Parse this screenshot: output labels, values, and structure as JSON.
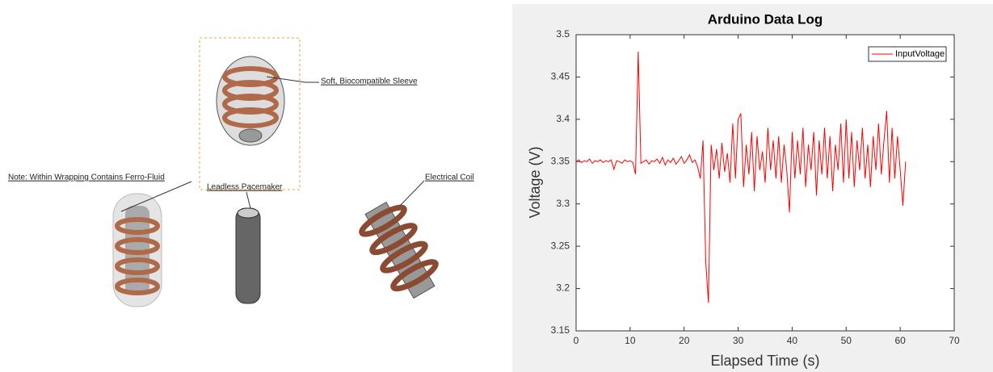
{
  "diagram": {
    "labels": [
      "Soft, Biocompatible Sleeve",
      "Note: Within Wrapping Contains Ferro-Fluid",
      "Leadless Pacemaker",
      "Electrical Coil"
    ]
  },
  "chart_data": {
    "type": "line",
    "title": "Arduino Data Log",
    "x_label": "Elapsed Time (s)",
    "y_label": "Voltage (V)",
    "xlim": [
      0,
      70
    ],
    "xticks": [
      0,
      10,
      20,
      30,
      40,
      50,
      60,
      70
    ],
    "ylim": [
      3.15,
      3.5
    ],
    "yticks": [
      3.15,
      3.2,
      3.25,
      3.3,
      3.35,
      3.4,
      3.45,
      3.5
    ],
    "grid": false,
    "legend": "upper right",
    "x": [
      0,
      0.5,
      1,
      1.5,
      2,
      2.5,
      3,
      3.5,
      4,
      4.5,
      5,
      5.5,
      6,
      6.5,
      7,
      7.5,
      8,
      8.5,
      9,
      9.5,
      10,
      10.5,
      11,
      11.5,
      12,
      12.5,
      13,
      13.5,
      14,
      14.5,
      15,
      15.5,
      16,
      16.5,
      17,
      17.5,
      18,
      18.5,
      19,
      19.5,
      20,
      20.5,
      21,
      21.5,
      22,
      22.5,
      23,
      23.5,
      24,
      24.5,
      25,
      25.5,
      26,
      26.5,
      27,
      27.5,
      28,
      28.5,
      29,
      29.5,
      30,
      30.5,
      31,
      31.5,
      32,
      32.5,
      33,
      33.5,
      34,
      34.5,
      35,
      35.5,
      36,
      36.5,
      37,
      37.5,
      38,
      38.5,
      39,
      39.5,
      40,
      40.5,
      41,
      41.5,
      42,
      42.5,
      43,
      43.5,
      44,
      44.5,
      45,
      45.5,
      46,
      46.5,
      47,
      47.5,
      48,
      48.5,
      49,
      49.5,
      50,
      50.5,
      51,
      51.5,
      52,
      52.5,
      53,
      53.5,
      54,
      54.5,
      55,
      55.5,
      56,
      56.5,
      57,
      57.5,
      58,
      58.5,
      59,
      59.5,
      60,
      60.5,
      61
    ],
    "series": [
      {
        "name": "InputVoltage",
        "color": "#ff0000",
        "values": [
          3.35,
          3.352,
          3.349,
          3.351,
          3.35,
          3.353,
          3.348,
          3.351,
          3.35,
          3.352,
          3.349,
          3.351,
          3.35,
          3.352,
          3.341,
          3.351,
          3.35,
          3.348,
          3.352,
          3.35,
          3.351,
          3.349,
          3.335,
          3.48,
          3.348,
          3.35,
          3.352,
          3.347,
          3.351,
          3.35,
          3.353,
          3.348,
          3.355,
          3.346,
          3.352,
          3.349,
          3.354,
          3.347,
          3.351,
          3.356,
          3.348,
          3.352,
          3.358,
          3.349,
          3.352,
          3.344,
          3.33,
          3.375,
          3.232,
          3.183,
          3.37,
          3.34,
          3.365,
          3.33,
          3.372,
          3.338,
          3.36,
          3.325,
          3.395,
          3.33,
          3.4,
          3.407,
          3.32,
          3.37,
          3.335,
          3.385,
          3.315,
          3.38,
          3.34,
          3.362,
          3.325,
          3.39,
          3.34,
          3.375,
          3.33,
          3.38,
          3.325,
          3.37,
          3.34,
          3.29,
          3.385,
          3.33,
          3.375,
          3.335,
          3.39,
          3.32,
          3.37,
          3.34,
          3.385,
          3.31,
          3.375,
          3.335,
          3.39,
          3.33,
          3.38,
          3.315,
          3.37,
          3.34,
          3.395,
          3.325,
          3.4,
          3.33,
          3.385,
          3.32,
          3.375,
          3.34,
          3.39,
          3.33,
          3.37,
          3.32,
          3.38,
          3.34,
          3.395,
          3.335,
          3.375,
          3.41,
          3.325,
          3.39,
          3.33,
          3.38,
          3.34,
          3.298,
          3.35
        ]
      }
    ]
  }
}
